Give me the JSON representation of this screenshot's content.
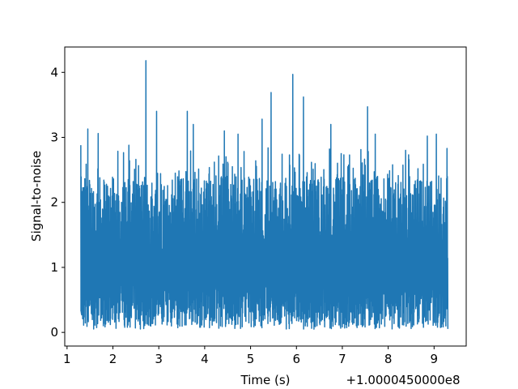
{
  "chart_data": {
    "type": "line",
    "title": "",
    "xlabel": "Time (s)",
    "ylabel": "Signal-to-noise",
    "x_offset_label": "+1.0000450000e8",
    "xlim": [
      0.95,
      9.7
    ],
    "ylim": [
      -0.21,
      4.39
    ],
    "xticks": [
      1,
      2,
      3,
      4,
      5,
      6,
      7,
      8,
      9
    ],
    "yticks": [
      0,
      1,
      2,
      3,
      4
    ],
    "grid": false,
    "legend": "none",
    "line_color": "#1f77b4",
    "series": [
      {
        "x_range": [
          1.3,
          9.3
        ],
        "baseline": 0.95,
        "min_value": 0.05,
        "max_value": 4.18,
        "peaks": [
          {
            "x": 1.3,
            "y": 2.88
          },
          {
            "x": 1.45,
            "y": 3.13
          },
          {
            "x": 1.68,
            "y": 3.06
          },
          {
            "x": 2.35,
            "y": 2.88
          },
          {
            "x": 2.72,
            "y": 4.18
          },
          {
            "x": 2.95,
            "y": 3.4
          },
          {
            "x": 3.62,
            "y": 3.4
          },
          {
            "x": 3.75,
            "y": 3.2
          },
          {
            "x": 4.43,
            "y": 3.1
          },
          {
            "x": 4.73,
            "y": 3.05
          },
          {
            "x": 5.25,
            "y": 3.28
          },
          {
            "x": 5.45,
            "y": 3.69
          },
          {
            "x": 5.92,
            "y": 3.97
          },
          {
            "x": 6.15,
            "y": 3.62
          },
          {
            "x": 6.75,
            "y": 3.2
          },
          {
            "x": 7.55,
            "y": 3.47
          },
          {
            "x": 7.72,
            "y": 3.05
          },
          {
            "x": 8.85,
            "y": 3.02
          },
          {
            "x": 9.05,
            "y": 3.05
          },
          {
            "x": 9.28,
            "y": 2.83
          }
        ]
      }
    ]
  }
}
